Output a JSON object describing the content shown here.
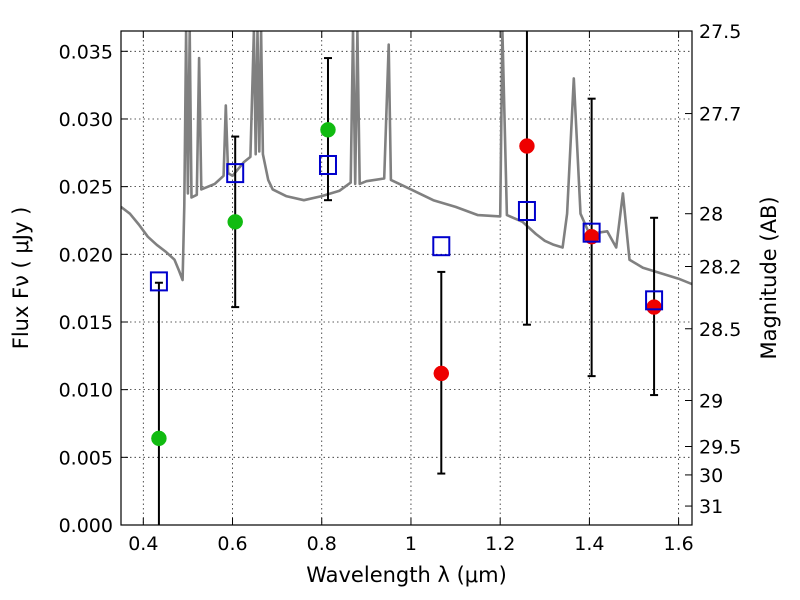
{
  "chart_data": {
    "type": "scatter",
    "title": "",
    "xlabel": "Wavelength  λ (μm)",
    "ylabel": "Flux  Fν  ( μJy )",
    "y2label": "Magnitude (AB)",
    "xlim": [
      0.35,
      1.63
    ],
    "ylim": [
      0.0,
      0.0365
    ],
    "grid": true,
    "legend": "none",
    "x_ticks": [
      {
        "v": 0.4,
        "label": "0.4"
      },
      {
        "v": 0.6,
        "label": "0.6"
      },
      {
        "v": 0.8,
        "label": "0.8"
      },
      {
        "v": 1.0,
        "label": "1"
      },
      {
        "v": 1.2,
        "label": "1.2"
      },
      {
        "v": 1.4,
        "label": "1.4"
      },
      {
        "v": 1.6,
        "label": "1.6"
      }
    ],
    "y_ticks": [
      {
        "v": 0.0,
        "label": "0.000"
      },
      {
        "v": 0.005,
        "label": "0.005"
      },
      {
        "v": 0.01,
        "label": "0.010"
      },
      {
        "v": 0.015,
        "label": "0.015"
      },
      {
        "v": 0.02,
        "label": "0.020"
      },
      {
        "v": 0.025,
        "label": "0.025"
      },
      {
        "v": 0.03,
        "label": "0.030"
      },
      {
        "v": 0.035,
        "label": "0.035"
      }
    ],
    "y2_ticks": [
      {
        "flux": 0.0365,
        "label": "27.5"
      },
      {
        "flux": 0.0304,
        "label": "27.7"
      },
      {
        "flux": 0.023,
        "label": "28"
      },
      {
        "flux": 0.0191,
        "label": "28.2"
      },
      {
        "flux": 0.0145,
        "label": "28.5"
      },
      {
        "flux": 0.0092,
        "label": "29"
      },
      {
        "flux": 0.0058,
        "label": "29.5"
      },
      {
        "flux": 0.0037,
        "label": "30"
      },
      {
        "flux": 0.0014,
        "label": "31"
      }
    ],
    "colors": {
      "model": "#808080",
      "green": "#11bb11",
      "red": "#ee0000",
      "square": "#0000cc",
      "errorbar": "#000000"
    },
    "series": [
      {
        "marker": "green-circle",
        "points": [
          {
            "x": 0.435,
            "y": 0.0064,
            "ylo": 0.0,
            "yhi": 0.0179
          },
          {
            "x": 0.606,
            "y": 0.0224,
            "ylo": 0.0161,
            "yhi": 0.0287
          },
          {
            "x": 0.814,
            "y": 0.0292,
            "ylo": 0.024,
            "yhi": 0.0345
          }
        ]
      },
      {
        "marker": "red-circle",
        "points": [
          {
            "x": 1.068,
            "y": 0.0112,
            "ylo": 0.0038,
            "yhi": 0.0187
          },
          {
            "x": 1.26,
            "y": 0.028,
            "ylo": 0.0148,
            "yhi": 0.0365
          },
          {
            "x": 1.405,
            "y": 0.0213,
            "ylo": 0.011,
            "yhi": 0.0315
          },
          {
            "x": 1.545,
            "y": 0.0161,
            "ylo": 0.0096,
            "yhi": 0.0227
          }
        ]
      },
      {
        "marker": "blue-square",
        "points": [
          {
            "x": 0.435,
            "y": 0.018
          },
          {
            "x": 0.606,
            "y": 0.026
          },
          {
            "x": 0.814,
            "y": 0.0266
          },
          {
            "x": 1.068,
            "y": 0.0206
          },
          {
            "x": 1.26,
            "y": 0.0232
          },
          {
            "x": 1.405,
            "y": 0.0216
          },
          {
            "x": 1.545,
            "y": 0.0166
          }
        ]
      }
    ],
    "model_spectrum": [
      [
        0.35,
        0.0235
      ],
      [
        0.37,
        0.023
      ],
      [
        0.39,
        0.0222
      ],
      [
        0.41,
        0.0213
      ],
      [
        0.43,
        0.0207
      ],
      [
        0.45,
        0.0202
      ],
      [
        0.47,
        0.0196
      ],
      [
        0.48,
        0.0188
      ],
      [
        0.488,
        0.0181
      ],
      [
        0.492,
        0.0236
      ],
      [
        0.496,
        0.0365
      ],
      [
        0.5,
        0.0245
      ],
      [
        0.504,
        0.0365
      ],
      [
        0.508,
        0.0242
      ],
      [
        0.52,
        0.0244
      ],
      [
        0.525,
        0.0345
      ],
      [
        0.53,
        0.0248
      ],
      [
        0.56,
        0.0252
      ],
      [
        0.58,
        0.0258
      ],
      [
        0.585,
        0.031
      ],
      [
        0.59,
        0.026
      ],
      [
        0.6,
        0.0258
      ],
      [
        0.61,
        0.0262
      ],
      [
        0.625,
        0.0268
      ],
      [
        0.64,
        0.0272
      ],
      [
        0.648,
        0.0365
      ],
      [
        0.652,
        0.0274
      ],
      [
        0.656,
        0.0365
      ],
      [
        0.66,
        0.0276
      ],
      [
        0.664,
        0.0365
      ],
      [
        0.668,
        0.0274
      ],
      [
        0.68,
        0.0255
      ],
      [
        0.69,
        0.0248
      ],
      [
        0.72,
        0.0243
      ],
      [
        0.76,
        0.024
      ],
      [
        0.8,
        0.0243
      ],
      [
        0.84,
        0.0247
      ],
      [
        0.865,
        0.0253
      ],
      [
        0.87,
        0.0365
      ],
      [
        0.875,
        0.0252
      ],
      [
        0.88,
        0.0365
      ],
      [
        0.885,
        0.0252
      ],
      [
        0.9,
        0.0254
      ],
      [
        0.94,
        0.0256
      ],
      [
        0.95,
        0.0355
      ],
      [
        0.955,
        0.0255
      ],
      [
        1.0,
        0.0248
      ],
      [
        1.05,
        0.024
      ],
      [
        1.1,
        0.0235
      ],
      [
        1.15,
        0.0229
      ],
      [
        1.2,
        0.0228
      ],
      [
        1.205,
        0.0365
      ],
      [
        1.215,
        0.0229
      ],
      [
        1.25,
        0.0224
      ],
      [
        1.28,
        0.0215
      ],
      [
        1.3,
        0.021
      ],
      [
        1.32,
        0.0207
      ],
      [
        1.34,
        0.0205
      ],
      [
        1.35,
        0.023
      ],
      [
        1.365,
        0.033
      ],
      [
        1.38,
        0.023
      ],
      [
        1.4,
        0.0215
      ],
      [
        1.44,
        0.0217
      ],
      [
        1.46,
        0.0205
      ],
      [
        1.475,
        0.0245
      ],
      [
        1.49,
        0.0196
      ],
      [
        1.52,
        0.019
      ],
      [
        1.56,
        0.0186
      ],
      [
        1.6,
        0.0182
      ],
      [
        1.63,
        0.0178
      ]
    ]
  }
}
